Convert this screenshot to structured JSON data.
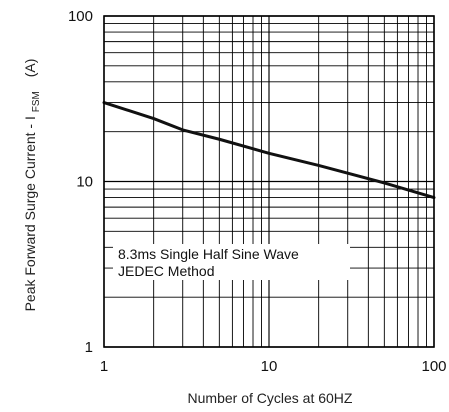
{
  "chart_data": {
    "type": "line",
    "title": "",
    "xlabel": "Number of Cycles at 60HZ",
    "ylabel": {
      "main": "Peak Forward Surge Current - I",
      "subscript": "FSM",
      "unit": "(A)"
    },
    "x_scale": "log",
    "y_scale": "log",
    "xlim": [
      1,
      100
    ],
    "ylim": [
      1,
      100
    ],
    "x_ticks": [
      {
        "value": 1,
        "label": "1"
      },
      {
        "value": 10,
        "label": "10"
      },
      {
        "value": 100,
        "label": "100"
      }
    ],
    "y_ticks": [
      {
        "value": 1,
        "label": "1"
      },
      {
        "value": 10,
        "label": "10"
      },
      {
        "value": 100,
        "label": "100"
      }
    ],
    "grid": true,
    "annotations": [
      "8.3ms Single Half Sine Wave",
      "JEDEC Method"
    ],
    "series": [
      {
        "values": [
          {
            "x": 1,
            "y": 30
          },
          {
            "x": 2,
            "y": 24
          },
          {
            "x": 3,
            "y": 20.5
          },
          {
            "x": 5,
            "y": 18
          },
          {
            "x": 10,
            "y": 14.8
          },
          {
            "x": 20,
            "y": 12.5
          },
          {
            "x": 50,
            "y": 9.8
          },
          {
            "x": 100,
            "y": 8
          }
        ],
        "color": "#111111"
      }
    ]
  }
}
